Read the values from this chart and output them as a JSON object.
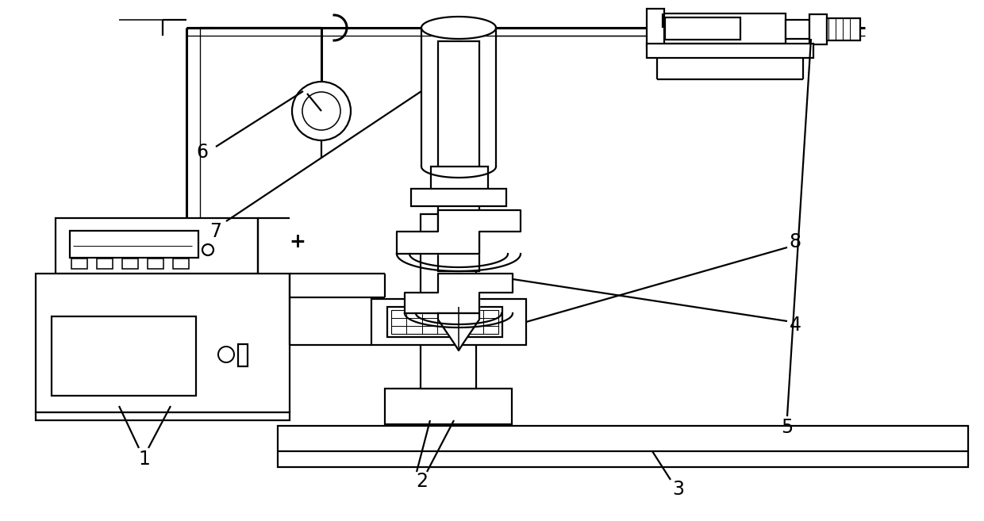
{
  "bg_color": "#ffffff",
  "lc": "#000000",
  "lw": 1.6,
  "tlw": 2.2,
  "fw": 12.4,
  "fh": 6.57,
  "dpi": 100,
  "xmax": 12.4,
  "ymax": 6.57
}
